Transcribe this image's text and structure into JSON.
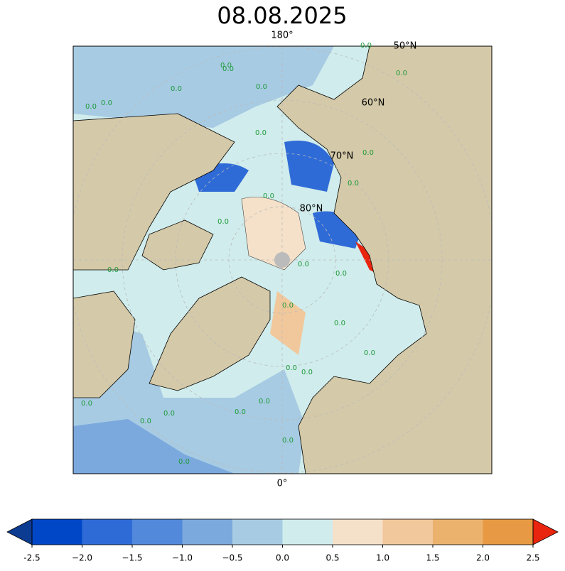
{
  "title": "08.08.2025",
  "map": {
    "meridian_labels": [
      "180°",
      "0°"
    ],
    "latitude_labels": [
      "50°N",
      "60°N",
      "70°N",
      "80°N"
    ],
    "contour_label": "0.0"
  },
  "colorbar": {
    "ticks": [
      -2.5,
      {
        "value": -2,
        "label": "−2.0"
      },
      {
        "value": -1.5,
        "label": "−1.5"
      },
      {
        "value": -1,
        "label": "−1.0"
      },
      {
        "value": -0.5,
        "label": "−0.5"
      },
      {
        "value": 0,
        "label": "0.0"
      },
      0.5,
      {
        "value": 1,
        "label": "1.0"
      },
      1.5,
      {
        "value": 2,
        "label": "2.0"
      },
      2.5
    ],
    "colors": [
      "#0047c8",
      "#2f6bd7",
      "#5289db",
      "#7ba9dd",
      "#a7cbe3",
      "#d0ecec",
      "#f5e1c9",
      "#f1c89b",
      "#ebb26e",
      "#e79a43"
    ],
    "under_color": "#0c3c92",
    "over_color": "#e9250f"
  }
}
